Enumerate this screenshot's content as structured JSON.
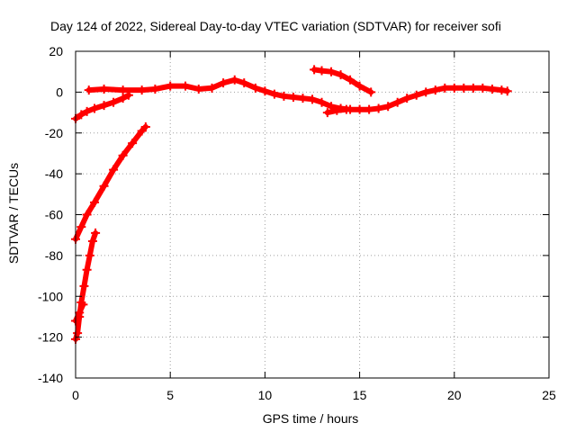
{
  "chart_data": {
    "type": "scatter",
    "title": "Day 124 of 2022, Sidereal Day-to-day VTEC variation (SDTVAR) for receiver sofi",
    "xlabel": "GPS time / hours",
    "ylabel": "SDTVAR / TECUs",
    "xlim": [
      0,
      25
    ],
    "ylim": [
      -140,
      20
    ],
    "xticks": [
      0,
      5,
      10,
      15,
      20,
      25
    ],
    "yticks": [
      20,
      0,
      -20,
      -40,
      -60,
      -80,
      -100,
      -120,
      -140
    ],
    "grid": true,
    "legend": "none",
    "series_color": "#ff0000",
    "tracks": [
      [
        [
          0.0,
          -121
        ],
        [
          0.1,
          -118
        ],
        [
          0.2,
          -110
        ],
        [
          0.3,
          -103
        ],
        [
          0.45,
          -95
        ],
        [
          0.6,
          -87
        ],
        [
          0.75,
          -80
        ],
        [
          0.9,
          -73
        ],
        [
          1.05,
          -69
        ]
      ],
      [
        [
          0.0,
          -112
        ],
        [
          0.2,
          -108
        ],
        [
          0.4,
          -104
        ]
      ],
      [
        [
          0.0,
          -72
        ],
        [
          0.3,
          -66
        ],
        [
          0.6,
          -60
        ],
        [
          1.0,
          -54
        ],
        [
          1.5,
          -46
        ],
        [
          2.0,
          -38
        ],
        [
          2.5,
          -31
        ],
        [
          3.0,
          -25
        ],
        [
          3.5,
          -19
        ],
        [
          3.7,
          -17
        ]
      ],
      [
        [
          0.0,
          -13
        ],
        [
          0.3,
          -11
        ],
        [
          0.6,
          -9.5
        ],
        [
          1.0,
          -8
        ],
        [
          1.5,
          -6.5
        ],
        [
          2.0,
          -5
        ],
        [
          2.5,
          -3
        ],
        [
          2.8,
          -1.5
        ]
      ],
      [
        [
          0.7,
          1
        ],
        [
          1.5,
          1.5
        ],
        [
          2.5,
          1
        ],
        [
          3.5,
          1
        ],
        [
          4.2,
          1.5
        ],
        [
          5.0,
          3
        ],
        [
          5.8,
          3
        ],
        [
          6.5,
          1.5
        ],
        [
          7.2,
          2
        ],
        [
          7.8,
          4.5
        ],
        [
          8.4,
          6
        ],
        [
          8.9,
          4.5
        ],
        [
          9.5,
          2
        ],
        [
          10.0,
          0.5
        ],
        [
          10.5,
          -1
        ],
        [
          11.0,
          -2
        ],
        [
          11.5,
          -2.5
        ],
        [
          12.0,
          -3
        ],
        [
          12.5,
          -3.5
        ],
        [
          13.0,
          -5
        ],
        [
          13.5,
          -7
        ],
        [
          14.0,
          -8
        ],
        [
          14.5,
          -8.5
        ],
        [
          15.0,
          -8.5
        ],
        [
          15.5,
          -8.5
        ],
        [
          16.0,
          -8
        ],
        [
          16.5,
          -7
        ],
        [
          17.0,
          -5
        ],
        [
          17.5,
          -3
        ],
        [
          18.0,
          -1.5
        ],
        [
          18.5,
          0
        ],
        [
          19.0,
          1
        ],
        [
          19.5,
          2
        ],
        [
          20.0,
          2
        ],
        [
          20.5,
          2
        ],
        [
          21.0,
          2
        ],
        [
          21.5,
          2
        ],
        [
          22.0,
          1.5
        ],
        [
          22.5,
          1
        ],
        [
          22.8,
          0.5
        ]
      ],
      [
        [
          13.3,
          -10
        ],
        [
          13.8,
          -9
        ],
        [
          14.3,
          -8.5
        ]
      ],
      [
        [
          12.6,
          11
        ],
        [
          13.0,
          10.5
        ],
        [
          13.5,
          10
        ],
        [
          14.0,
          8.5
        ],
        [
          14.5,
          6
        ],
        [
          15.0,
          3
        ],
        [
          15.6,
          0
        ]
      ]
    ]
  },
  "colors": {
    "data": "#ff0000",
    "grid": "#a0a0a0",
    "axes": "#000000",
    "background": "#ffffff"
  }
}
